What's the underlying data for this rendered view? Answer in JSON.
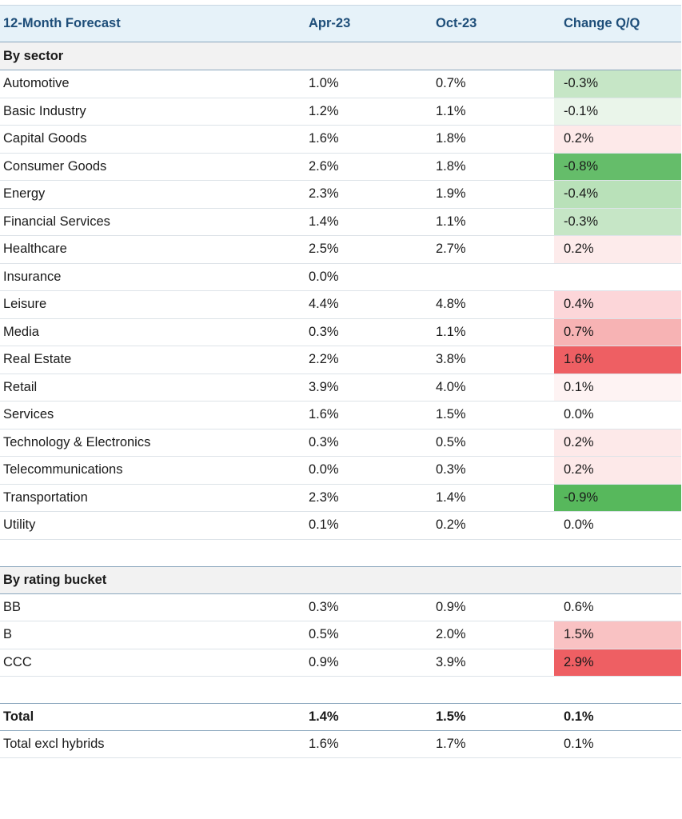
{
  "header": {
    "label": "12-Month Forecast",
    "col1": "Apr-23",
    "col2": "Oct-23",
    "col3": "Change Q/Q"
  },
  "sector_title": "By sector",
  "sectors": [
    {
      "name": "Automotive",
      "apr": "1.0%",
      "oct": "0.7%",
      "chg": "-0.3%",
      "color": "#c6e6c6"
    },
    {
      "name": "Basic Industry",
      "apr": "1.2%",
      "oct": "1.1%",
      "chg": "-0.1%",
      "color": "#eaf5ea"
    },
    {
      "name": "Capital Goods",
      "apr": "1.6%",
      "oct": "1.8%",
      "chg": "0.2%",
      "color": "#fde9e9"
    },
    {
      "name": "Consumer Goods",
      "apr": "2.6%",
      "oct": "1.8%",
      "chg": "-0.8%",
      "color": "#65bd6a"
    },
    {
      "name": "Energy",
      "apr": "2.3%",
      "oct": "1.9%",
      "chg": "-0.4%",
      "color": "#b9e1b9"
    },
    {
      "name": "Financial Services",
      "apr": "1.4%",
      "oct": "1.1%",
      "chg": "-0.3%",
      "color": "#c6e6c6"
    },
    {
      "name": "Healthcare",
      "apr": "2.5%",
      "oct": "2.7%",
      "chg": "0.2%",
      "color": "#fdebeb"
    },
    {
      "name": "Insurance",
      "apr": "0.0%",
      "oct": "",
      "chg": "",
      "color": "#ffffff"
    },
    {
      "name": "Leisure",
      "apr": "4.4%",
      "oct": "4.8%",
      "chg": "0.4%",
      "color": "#fcd6d9"
    },
    {
      "name": "Media",
      "apr": "0.3%",
      "oct": "1.1%",
      "chg": "0.7%",
      "color": "#f7b3b4"
    },
    {
      "name": "Real Estate",
      "apr": "2.2%",
      "oct": "3.8%",
      "chg": "1.6%",
      "color": "#ee5f63"
    },
    {
      "name": "Retail",
      "apr": "3.9%",
      "oct": "4.0%",
      "chg": "0.1%",
      "color": "#fef3f3"
    },
    {
      "name": "Services",
      "apr": "1.6%",
      "oct": "1.5%",
      "chg": "0.0%",
      "color": "#ffffff"
    },
    {
      "name": "Technology & Electronics",
      "apr": "0.3%",
      "oct": "0.5%",
      "chg": "0.2%",
      "color": "#fde9e9"
    },
    {
      "name": "Telecommunications",
      "apr": "0.0%",
      "oct": "0.3%",
      "chg": "0.2%",
      "color": "#fde9e9"
    },
    {
      "name": "Transportation",
      "apr": "2.3%",
      "oct": "1.4%",
      "chg": "-0.9%",
      "color": "#57b85c"
    },
    {
      "name": "Utility",
      "apr": "0.1%",
      "oct": "0.2%",
      "chg": "0.0%",
      "color": "#ffffff"
    }
  ],
  "rating_title": "By rating bucket",
  "ratings": [
    {
      "name": "BB",
      "apr": "0.3%",
      "oct": "0.9%",
      "chg": "0.6%",
      "color": "#ffffff"
    },
    {
      "name": "B",
      "apr": "0.5%",
      "oct": "2.0%",
      "chg": "1.5%",
      "color": "#f9c2c3"
    },
    {
      "name": "CCC",
      "apr": "0.9%",
      "oct": "3.9%",
      "chg": "2.9%",
      "color": "#ee5f63"
    }
  ],
  "totals": [
    {
      "name": "Total",
      "apr": "1.4%",
      "oct": "1.5%",
      "chg": "0.1%",
      "bold": true
    },
    {
      "name": "Total excl hybrids",
      "apr": "1.6%",
      "oct": "1.7%",
      "chg": "0.1%",
      "bold": false
    }
  ]
}
